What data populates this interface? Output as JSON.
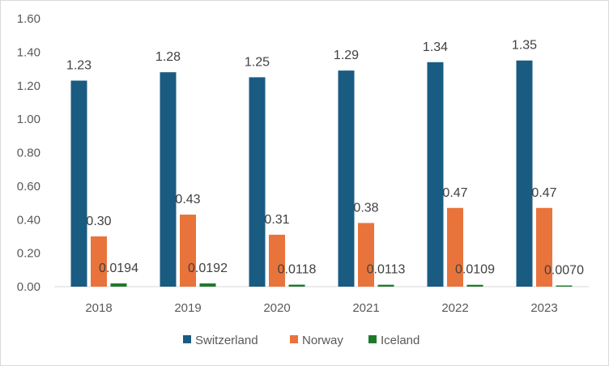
{
  "chart_data": {
    "type": "bar",
    "categories": [
      "2018",
      "2019",
      "2020",
      "2021",
      "2022",
      "2023"
    ],
    "series": [
      {
        "name": "Switzerland",
        "color": "#1a5b82",
        "values": [
          1.23,
          1.28,
          1.25,
          1.29,
          1.34,
          1.35
        ],
        "labels": [
          "1.23",
          "1.28",
          "1.25",
          "1.29",
          "1.34",
          "1.35"
        ]
      },
      {
        "name": "Norway",
        "color": "#e8743b",
        "values": [
          0.3,
          0.43,
          0.31,
          0.38,
          0.47,
          0.47
        ],
        "labels": [
          "0.30",
          "0.43",
          "0.31",
          "0.38",
          "0.47",
          "0.47"
        ]
      },
      {
        "name": "Iceland",
        "color": "#1e7a2a",
        "values": [
          0.0194,
          0.0192,
          0.0118,
          0.0113,
          0.0109,
          0.007
        ],
        "labels": [
          "0.0194",
          "0.0192",
          "0.0118",
          "0.0113",
          "0.0109",
          "0.0070"
        ]
      }
    ],
    "yticks": [
      "0.00",
      "0.20",
      "0.40",
      "0.60",
      "0.80",
      "1.00",
      "1.20",
      "1.40",
      "1.60"
    ],
    "ylim": [
      0,
      1.6
    ],
    "grid": false,
    "legend": "bottom",
    "title": "",
    "xlabel": "",
    "ylabel": ""
  }
}
